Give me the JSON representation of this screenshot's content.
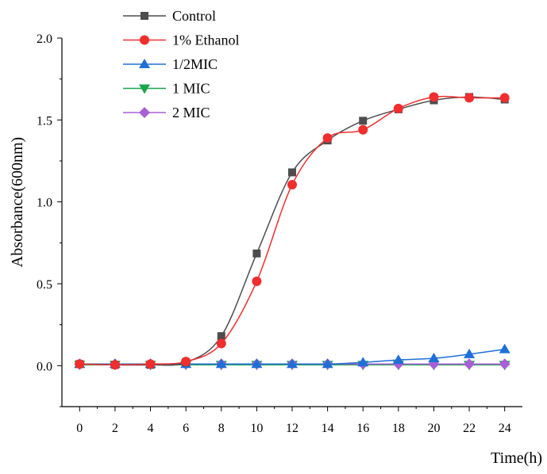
{
  "chart_data": {
    "type": "line",
    "title": "",
    "xlabel": "Time(h)",
    "ylabel": "Absorbance(600nm)",
    "xlim": [
      -1,
      25
    ],
    "ylim": [
      -0.25,
      2.0
    ],
    "x_ticks": [
      0,
      2,
      4,
      6,
      8,
      10,
      12,
      14,
      16,
      18,
      20,
      22,
      24
    ],
    "x_tick_labels": [
      "0",
      "2",
      "4",
      "6",
      "8",
      "10",
      "12",
      "14",
      "16",
      "18",
      "20",
      "22",
      "24"
    ],
    "y_ticks": [
      0.0,
      0.5,
      1.0,
      1.5,
      2.0
    ],
    "y_tick_labels": [
      "0.0",
      "0.5",
      "1.0",
      "1.5",
      "2.0"
    ],
    "grid": false,
    "legend_position": "top-left",
    "x": [
      0,
      2,
      4,
      6,
      8,
      10,
      12,
      14,
      16,
      18,
      20,
      22,
      24
    ],
    "series": [
      {
        "name": "Control",
        "color": "#4d4d4d",
        "marker": "square",
        "values": [
          0.01,
          0.005,
          0.005,
          0.02,
          0.18,
          0.685,
          1.18,
          1.375,
          1.495,
          1.565,
          1.62,
          1.64,
          1.625
        ]
      },
      {
        "name": "1% Ethanol",
        "color": "#f02e2e",
        "marker": "circle",
        "values": [
          0.01,
          0.005,
          0.01,
          0.025,
          0.135,
          0.515,
          1.105,
          1.39,
          1.44,
          1.57,
          1.64,
          1.635,
          1.635
        ]
      },
      {
        "name": "1/2MIC",
        "color": "#1f6fd6",
        "marker": "triangle-up",
        "values": [
          0.01,
          0.01,
          0.01,
          0.01,
          0.01,
          0.01,
          0.01,
          0.01,
          0.02,
          0.035,
          0.045,
          0.07,
          0.1
        ]
      },
      {
        "name": "1 MIC",
        "color": "#1aa64a",
        "marker": "triangle-down",
        "values": [
          0.005,
          0.005,
          0.005,
          0.005,
          0.005,
          0.005,
          0.005,
          0.005,
          0.005,
          0.005,
          0.005,
          0.005,
          0.005
        ]
      },
      {
        "name": "2 MIC",
        "color": "#a85fd6",
        "marker": "diamond",
        "values": [
          0.01,
          0.01,
          0.01,
          0.01,
          0.01,
          0.01,
          0.01,
          0.01,
          0.01,
          0.01,
          0.01,
          0.01,
          0.01
        ]
      }
    ]
  }
}
